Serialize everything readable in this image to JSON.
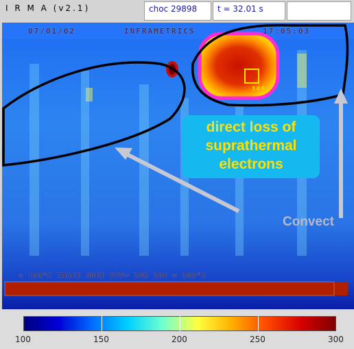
{
  "window": {
    "app_title": "I R M A  (v2.1)"
  },
  "status": {
    "shot": "choc 29898",
    "time": "t = 32.01 s"
  },
  "image_overlay": {
    "date": "07/01/02",
    "brand": "INFRAMETRICS",
    "clock": "17:05:03",
    "footer": "≈ 100°C  TRACE MODE  FOV= 20H  20V  ≈ 300°C",
    "point_label": "300"
  },
  "annotations": {
    "callout_lines": [
      "direct loss of",
      "suprathermal",
      "electrons"
    ],
    "side_label": "Convect"
  },
  "colorscale": {
    "ticks": [
      "100",
      "150",
      "200",
      "250",
      "300"
    ],
    "min": 100,
    "max": 300
  },
  "colors": {
    "callout_bg": "#15b8ef",
    "callout_text": "#ffe100",
    "hot_region_outline": "#ff2ad4",
    "region_outline": "#000000"
  },
  "icons": [
    "arrow-icon",
    "arrow-icon",
    "marker-square-icon"
  ]
}
